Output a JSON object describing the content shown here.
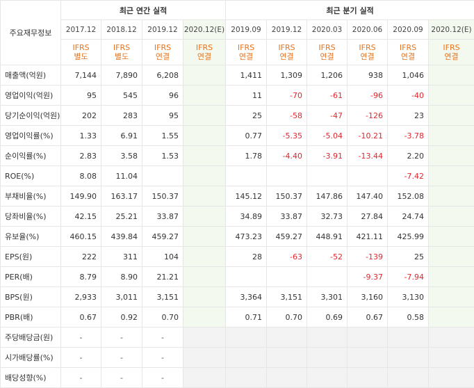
{
  "header": {
    "label_col": "주요재무정보",
    "annual_group": "최근 연간 실적",
    "quarter_group": "최근 분기 실적",
    "annual_periods": [
      {
        "period": "2017.12",
        "std1": "IFRS",
        "std2": "별도",
        "est": false
      },
      {
        "period": "2018.12",
        "std1": "IFRS",
        "std2": "별도",
        "est": false
      },
      {
        "period": "2019.12",
        "std1": "IFRS",
        "std2": "연결",
        "est": false
      },
      {
        "period": "2020.12(E)",
        "std1": "IFRS",
        "std2": "연결",
        "est": true
      }
    ],
    "quarter_periods": [
      {
        "period": "2019.09",
        "std1": "IFRS",
        "std2": "연결",
        "est": false
      },
      {
        "period": "2019.12",
        "std1": "IFRS",
        "std2": "연결",
        "est": false
      },
      {
        "period": "2020.03",
        "std1": "IFRS",
        "std2": "연결",
        "est": false
      },
      {
        "period": "2020.06",
        "std1": "IFRS",
        "std2": "연결",
        "est": false
      },
      {
        "period": "2020.09",
        "std1": "IFRS",
        "std2": "연결",
        "est": false
      },
      {
        "period": "2020.12(E)",
        "std1": "IFRS",
        "std2": "연결",
        "est": true
      }
    ]
  },
  "rows": [
    {
      "label": "매출액(억원)",
      "values": [
        "7,144",
        "7,890",
        "6,208",
        "",
        "1,411",
        "1,309",
        "1,206",
        "938",
        "1,046",
        ""
      ]
    },
    {
      "label": "영업이익(억원)",
      "values": [
        "95",
        "545",
        "96",
        "",
        "11",
        "-70",
        "-61",
        "-96",
        "-40",
        ""
      ]
    },
    {
      "label": "당기순이익(억원)",
      "values": [
        "202",
        "283",
        "95",
        "",
        "25",
        "-58",
        "-47",
        "-126",
        "23",
        ""
      ]
    },
    {
      "label": "영업이익률(%)",
      "values": [
        "1.33",
        "6.91",
        "1.55",
        "",
        "0.77",
        "-5.35",
        "-5.04",
        "-10.21",
        "-3.78",
        ""
      ]
    },
    {
      "label": "순이익률(%)",
      "values": [
        "2.83",
        "3.58",
        "1.53",
        "",
        "1.78",
        "-4.40",
        "-3.91",
        "-13.44",
        "2.20",
        ""
      ]
    },
    {
      "label": "ROE(%)",
      "values": [
        "8.08",
        "11.04",
        "",
        "",
        "",
        "",
        "",
        "",
        "-7.42",
        ""
      ]
    },
    {
      "label": "부채비율(%)",
      "values": [
        "149.90",
        "163.17",
        "150.37",
        "",
        "145.12",
        "150.37",
        "147.86",
        "147.40",
        "152.08",
        ""
      ]
    },
    {
      "label": "당좌비율(%)",
      "values": [
        "42.15",
        "25.21",
        "33.87",
        "",
        "34.89",
        "33.87",
        "32.73",
        "27.84",
        "24.74",
        ""
      ]
    },
    {
      "label": "유보율(%)",
      "values": [
        "460.15",
        "439.84",
        "459.27",
        "",
        "473.23",
        "459.27",
        "448.91",
        "421.11",
        "425.99",
        ""
      ]
    },
    {
      "label": "EPS(원)",
      "values": [
        "222",
        "311",
        "104",
        "",
        "28",
        "-63",
        "-52",
        "-139",
        "25",
        ""
      ]
    },
    {
      "label": "PER(배)",
      "values": [
        "8.79",
        "8.90",
        "21.21",
        "",
        "",
        "",
        "",
        "-9.37",
        "-7.94",
        ""
      ]
    },
    {
      "label": "BPS(원)",
      "values": [
        "2,933",
        "3,011",
        "3,151",
        "",
        "3,364",
        "3,151",
        "3,301",
        "3,160",
        "3,130",
        ""
      ]
    },
    {
      "label": "PBR(배)",
      "values": [
        "0.67",
        "0.92",
        "0.70",
        "",
        "0.71",
        "0.70",
        "0.69",
        "0.67",
        "0.58",
        ""
      ]
    },
    {
      "label": "주당배당금(원)",
      "values": [
        "-",
        "-",
        "-",
        "",
        "",
        "",
        "",
        "",
        "",
        ""
      ]
    },
    {
      "label": "시가배당률(%)",
      "values": [
        "-",
        "-",
        "-",
        "",
        "",
        "",
        "",
        "",
        "",
        ""
      ]
    },
    {
      "label": "배당성향(%)",
      "values": [
        "-",
        "-",
        "-",
        "",
        "",
        "",
        "",
        "",
        "",
        ""
      ]
    }
  ],
  "colors": {
    "standard": "#e8731a",
    "negative": "#e0262e",
    "estimate_bg": "#f4f9ef",
    "empty_bg": "#f3f3f3"
  }
}
